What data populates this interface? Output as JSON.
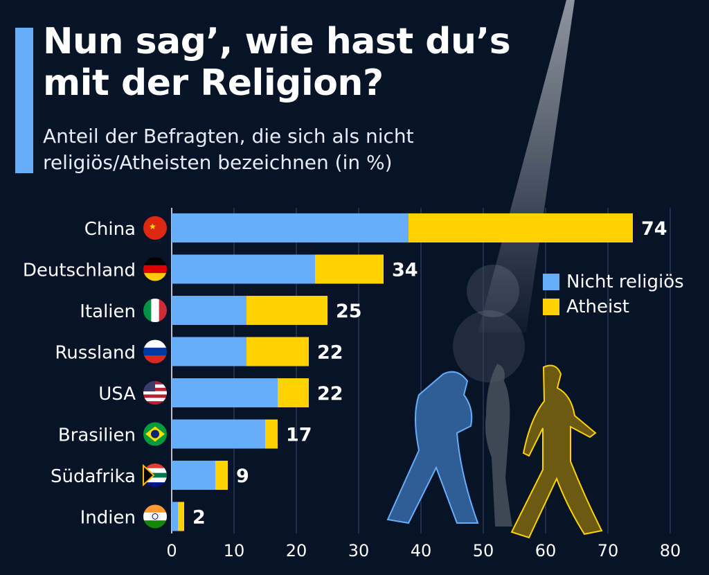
{
  "title_lines": [
    "Nun sag’, wie hast du’s",
    "mit der Religion?"
  ],
  "subtitle_lines": [
    "Anteil der Befragten, die sich als nicht",
    "religiös/Atheisten bezeichnen (in %)"
  ],
  "colors": {
    "background": "#071428",
    "nicht_religioes": "#64aefc",
    "atheist": "#ffd200",
    "accent": "#64aefc"
  },
  "legend": {
    "nicht_religioes": "Nicht religiös",
    "atheist": "Atheist",
    "placement": "right"
  },
  "chart_data": {
    "type": "bar",
    "orientation": "horizontal",
    "stacked": true,
    "categories": [
      "China",
      "Deutschland",
      "Italien",
      "Russland",
      "USA",
      "Brasilien",
      "Südafrika",
      "Indien"
    ],
    "flags": [
      "china-flag",
      "germany-flag",
      "italy-flag",
      "russia-flag",
      "usa-flag",
      "brazil-flag",
      "south-africa-flag",
      "india-flag"
    ],
    "series": [
      {
        "name": "Nicht religiös",
        "values": [
          38,
          23,
          12,
          12,
          17,
          15,
          7,
          1
        ]
      },
      {
        "name": "Atheist",
        "values": [
          36,
          11,
          13,
          10,
          5,
          2,
          2,
          1
        ]
      }
    ],
    "totals": [
      74,
      34,
      25,
      22,
      22,
      17,
      9,
      2
    ],
    "xlim": [
      0,
      80
    ],
    "xticks": [
      "0",
      "10",
      "20",
      "30",
      "40",
      "50",
      "60",
      "70",
      "80"
    ],
    "grid": true
  }
}
